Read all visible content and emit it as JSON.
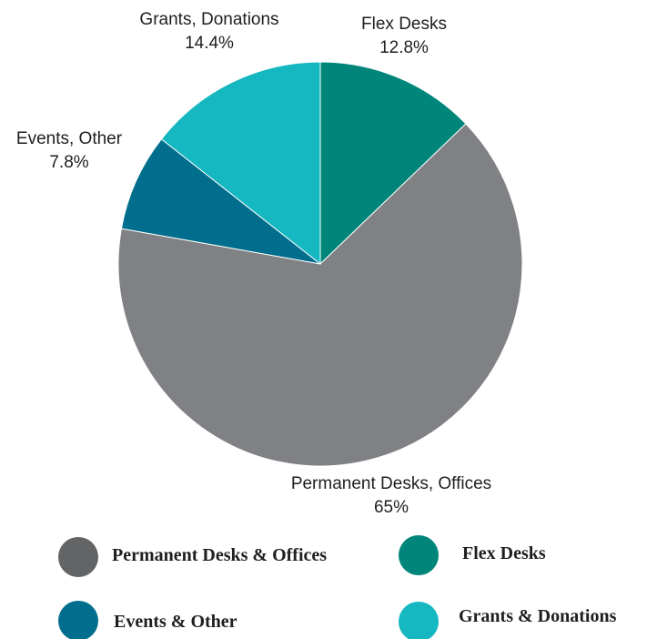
{
  "chart_data": {
    "type": "pie",
    "slices": [
      {
        "key": "flex",
        "label": "Flex Desks",
        "value_label": "12.8%",
        "value": 12.8,
        "color": "#00857A"
      },
      {
        "key": "permanent",
        "label": "Permanent Desks, Offices",
        "value_label": "65%",
        "value": 65.0,
        "color": "#808184"
      },
      {
        "key": "events",
        "label": "Events, Other",
        "value_label": "7.8%",
        "value": 7.8,
        "color": "#006E8C"
      },
      {
        "key": "grants",
        "label": "Grants, Donations",
        "value_label": "14.4%",
        "value": 14.4,
        "color": "#15B7C1"
      }
    ],
    "legend": [
      {
        "key": "permanent",
        "label": "Permanent Desks & Offices",
        "color": "#636466"
      },
      {
        "key": "flex",
        "label": "Flex Desks",
        "color": "#00857A"
      },
      {
        "key": "events",
        "label": "Events & Other",
        "color": "#006E8C"
      },
      {
        "key": "grants",
        "label": "Grants & Donations",
        "color": "#15B7C1"
      }
    ],
    "legend_position": "bottom"
  }
}
